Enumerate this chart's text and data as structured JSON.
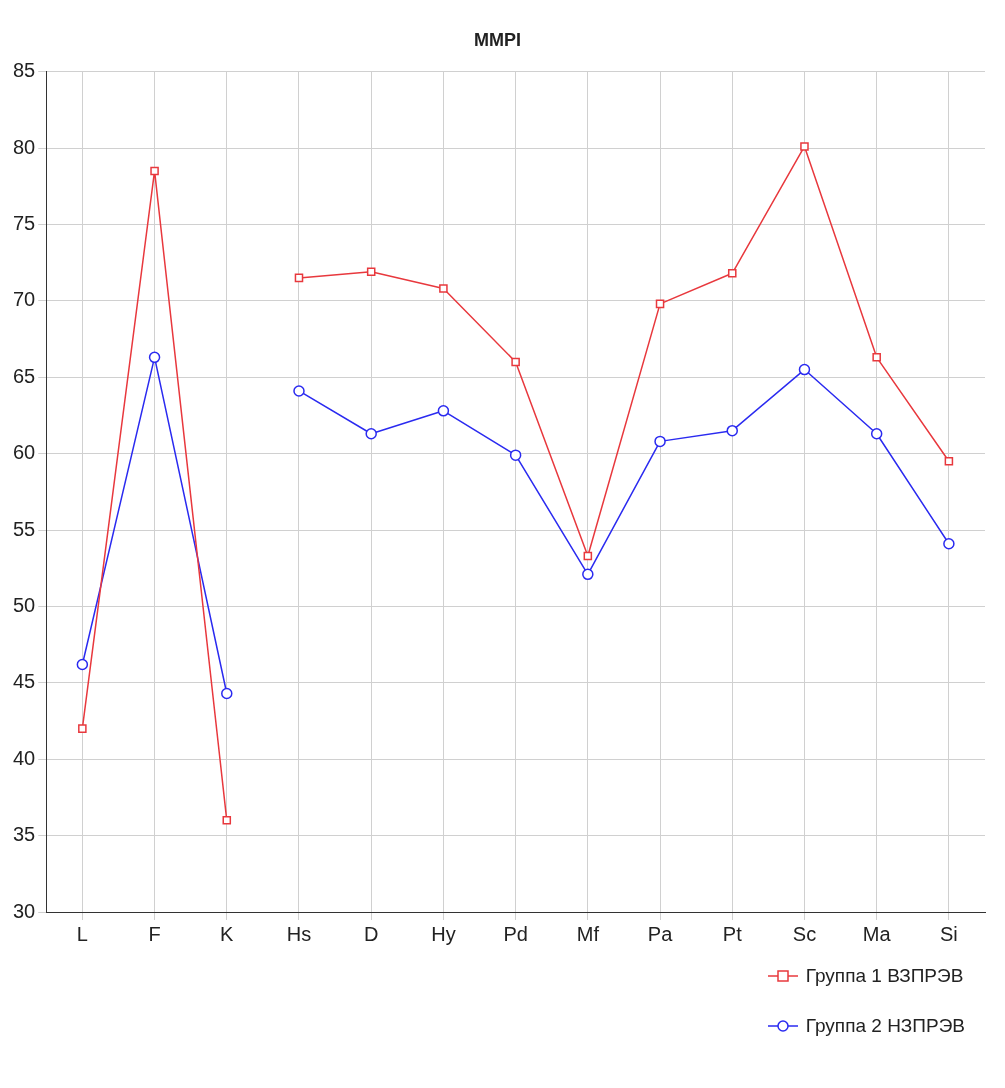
{
  "chart_data": {
    "type": "line",
    "title": "MMPI",
    "categories": [
      "L",
      "F",
      "K",
      "Hs",
      "D",
      "Hy",
      "Pd",
      "Mf",
      "Pa",
      "Pt",
      "Sc",
      "Ma",
      "Si"
    ],
    "series": [
      {
        "name": "Группа 1 ВЗПРЭВ",
        "color": "#e8383d",
        "marker": "square",
        "values": [
          42,
          78.5,
          36,
          null,
          null,
          null,
          null,
          null,
          null,
          null,
          null,
          null,
          null
        ]
      },
      {
        "color": "#e8383d",
        "marker": "square",
        "values": [
          null,
          null,
          null,
          71.5,
          71.9,
          70.8,
          66,
          53.3,
          69.8,
          71.8,
          80.1,
          66.3,
          59.5
        ]
      },
      {
        "name": "Группа 2 НЗПРЭВ",
        "color": "#2a2af0",
        "marker": "circle",
        "values": [
          46.2,
          66.3,
          44.3,
          null,
          null,
          null,
          null,
          null,
          null,
          null,
          null,
          null,
          null
        ]
      },
      {
        "color": "#2a2af0",
        "marker": "circle",
        "values": [
          null,
          null,
          null,
          64.1,
          61.3,
          62.8,
          59.9,
          52.1,
          60.8,
          61.5,
          65.5,
          61.3,
          54.1
        ]
      }
    ],
    "ylim": [
      30,
      85
    ],
    "yticks": [
      30,
      35,
      40,
      45,
      50,
      55,
      60,
      65,
      70,
      75,
      80,
      85
    ],
    "grid": true,
    "legend": "bottom right"
  }
}
